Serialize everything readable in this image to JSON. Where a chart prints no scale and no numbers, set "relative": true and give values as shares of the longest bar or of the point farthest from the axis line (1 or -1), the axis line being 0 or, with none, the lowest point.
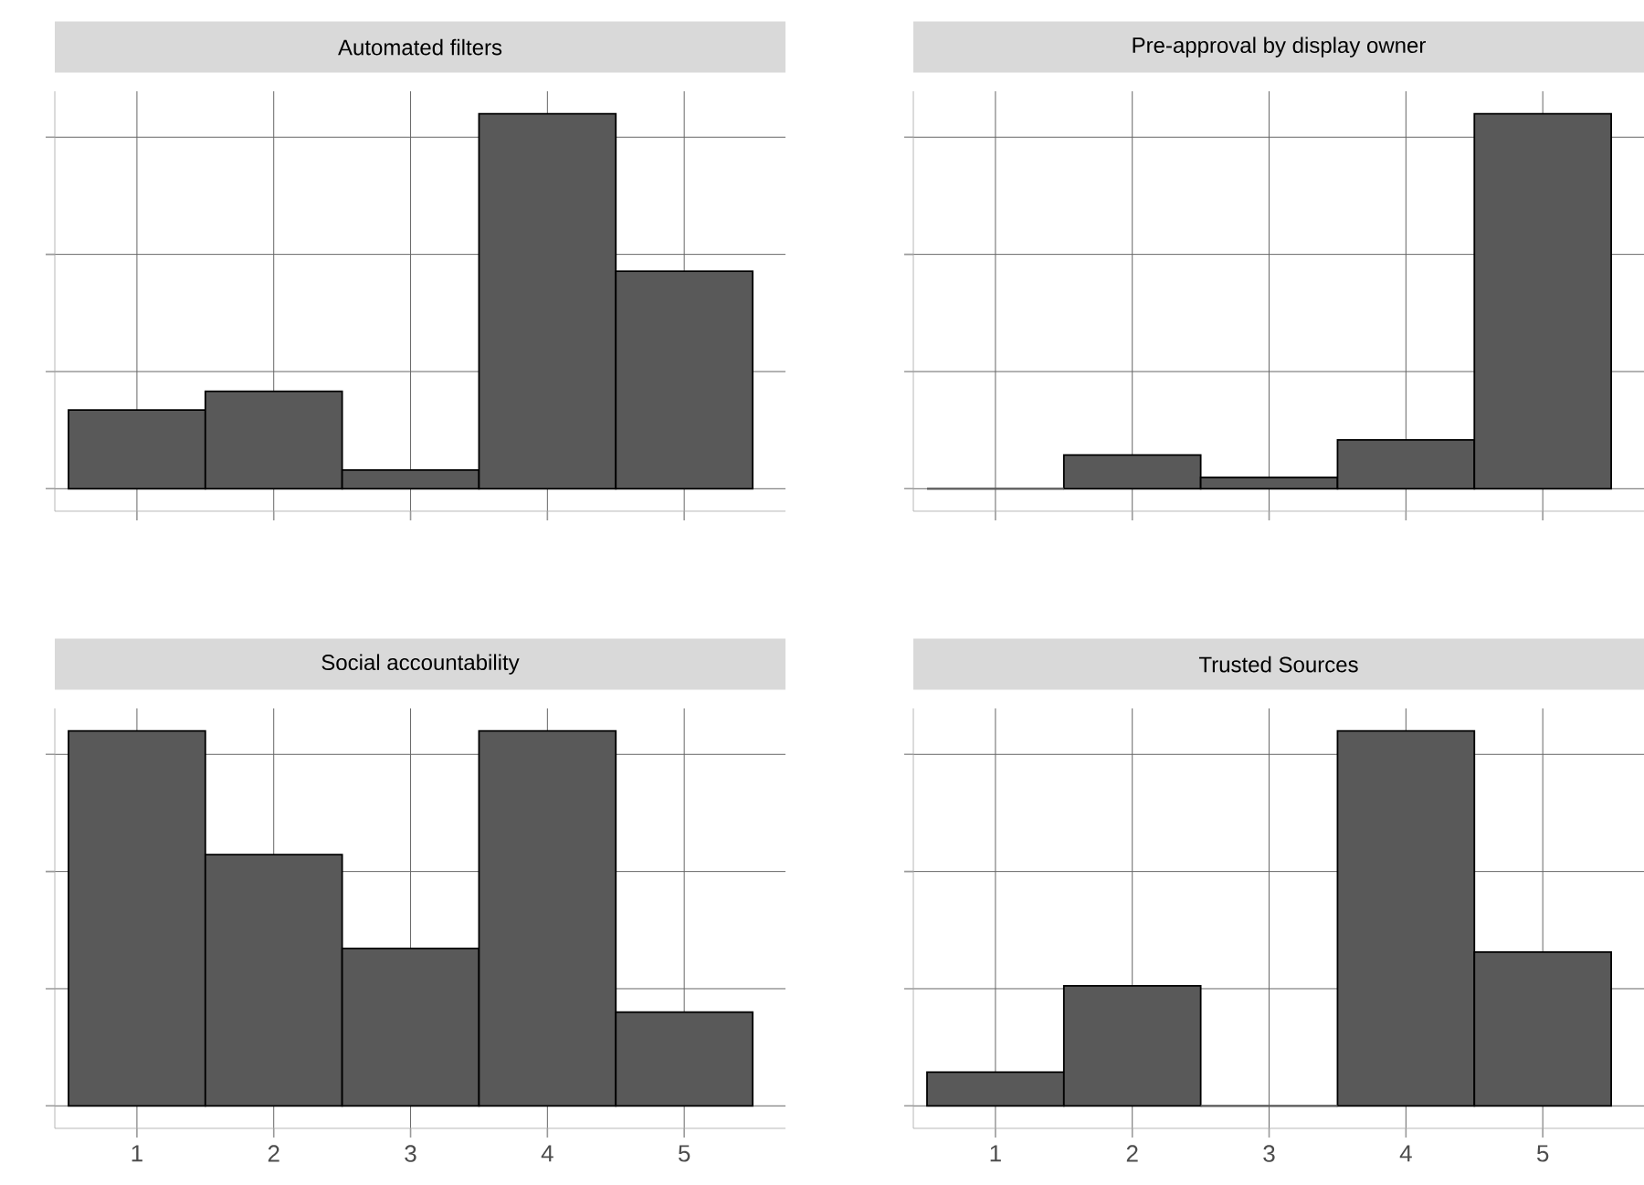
{
  "chart_data": [
    {
      "type": "bar",
      "title": "Automated filters",
      "categories": [
        "1",
        "2",
        "3",
        "4",
        "5"
      ],
      "values": [
        0.21,
        0.26,
        0.05,
        1,
        0.58
      ],
      "color": "#595959",
      "relative": true,
      "grid": true,
      "tick_labels": false
    },
    {
      "type": "bar",
      "title": "Pre-approval by display owner",
      "categories": [
        "1",
        "2",
        "3",
        "4",
        "5"
      ],
      "values": [
        0,
        0.09,
        0.03,
        0.13,
        1
      ],
      "color": "#595959",
      "relative": true,
      "grid": true,
      "tick_labels": false
    },
    {
      "type": "bar",
      "title": "Social accountability",
      "categories": [
        "1",
        "2",
        "3",
        "4",
        "5"
      ],
      "values": [
        1,
        0.67,
        0.42,
        1,
        0.25
      ],
      "color": "#595959",
      "relative": true,
      "grid": true,
      "tick_labels": "x"
    },
    {
      "type": "bar",
      "title": "Trusted Sources",
      "categories": [
        "1",
        "2",
        "3",
        "4",
        "5"
      ],
      "values": [
        0.09,
        0.32,
        0,
        1,
        0.41
      ],
      "color": "#595959",
      "relative": true,
      "grid": true,
      "tick_labels": "x"
    }
  ]
}
